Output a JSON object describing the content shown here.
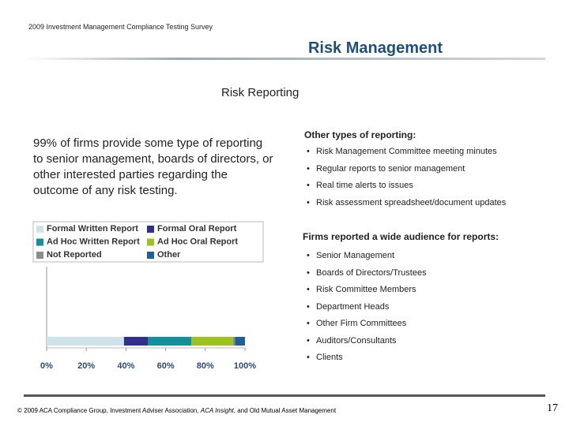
{
  "header": {
    "survey": "2009 Investment Management Compliance Testing Survey",
    "title": "Risk Management",
    "subtitle": "Risk Reporting"
  },
  "summary": "99% of firms provide some type of reporting to senior management, boards of directors, or other interested parties regarding the outcome of any risk testing.",
  "other_types": {
    "heading": "Other types of reporting:",
    "items": [
      "Risk Management Committee meeting minutes",
      "Regular reports to senior management",
      "Real time alerts to issues",
      "Risk assessment spreadsheet/document updates"
    ]
  },
  "audience": {
    "heading": "Firms reported a wide audience for reports:",
    "items": [
      "Senior Management",
      "Boards of Directors/Trustees",
      "Risk Committee Members",
      "Department Heads",
      "Other Firm Committees",
      "Auditors/Consultants",
      "Clients"
    ]
  },
  "chart_data": {
    "type": "bar",
    "orientation": "horizontal",
    "stacked": true,
    "categories": [
      null
    ],
    "series": [
      {
        "name": "Formal Written Report",
        "color": "#cfe3ea",
        "values": [
          39
        ]
      },
      {
        "name": "Formal Oral Report",
        "color": "#2e2f8f",
        "values": [
          12
        ]
      },
      {
        "name": "Ad Hoc Written Report",
        "color": "#12909b",
        "values": [
          22
        ]
      },
      {
        "name": "Ad Hoc Oral Report",
        "color": "#9dc31d",
        "values": [
          21
        ]
      },
      {
        "name": "Not Reported",
        "color": "#8c8c8c",
        "values": [
          1
        ]
      },
      {
        "name": "Other",
        "color": "#1e5f9e",
        "values": [
          5
        ]
      }
    ],
    "xlim": [
      0,
      100
    ],
    "xticks": [
      {
        "value": 0,
        "label": "0%"
      },
      {
        "value": 20,
        "label": "20%"
      },
      {
        "value": 40,
        "label": "40%"
      },
      {
        "value": 60,
        "label": "60%"
      },
      {
        "value": 80,
        "label": "80%"
      },
      {
        "value": 100,
        "label": "100%"
      }
    ],
    "legend": "top"
  },
  "footer": {
    "parts": [
      "© 2009 ACA Compliance Group, Investment Adviser Association, ",
      "ACA Insight",
      ", and Old Mutual Asset Management"
    ]
  },
  "page_number": 17
}
